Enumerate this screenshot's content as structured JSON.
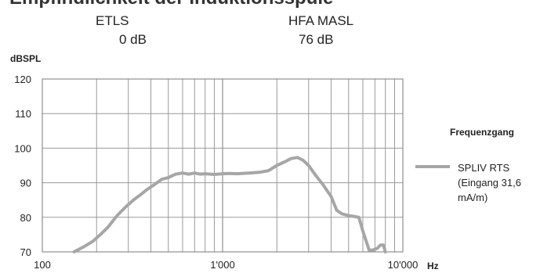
{
  "header": {
    "title": "Empfindlichkeit der Induktionsspule",
    "left_label": "ETLS",
    "left_value": "0 dB",
    "right_label": "HFA MASL",
    "right_value": "76 dB"
  },
  "chart_data": {
    "type": "line",
    "title": "",
    "ylabel": "dBSPL",
    "xlabel": "Hz",
    "xscale": "log",
    "xlim": [
      100,
      10000
    ],
    "ylim": [
      70,
      120
    ],
    "xticks": [
      100,
      1000,
      10000
    ],
    "xtick_labels": [
      "100",
      "1'000",
      "10'000"
    ],
    "yticks": [
      70,
      80,
      90,
      100,
      110,
      120
    ],
    "grid": true,
    "legend": {
      "title": "Frequenzgang",
      "position": "right"
    },
    "series": [
      {
        "name": "SPLIV RTS (Eingang 31,6 mA/m)",
        "color": "#a6a6a6",
        "x": [
          150,
          170,
          190,
          210,
          230,
          260,
          290,
          320,
          350,
          380,
          420,
          460,
          500,
          550,
          600,
          650,
          700,
          750,
          800,
          900,
          1000,
          1100,
          1200,
          1400,
          1600,
          1800,
          2000,
          2200,
          2400,
          2600,
          2800,
          3000,
          3300,
          3600,
          4000,
          4300,
          4600,
          5000,
          5300,
          5700,
          6000,
          6500,
          6800,
          7000,
          7200,
          7500,
          7800,
          8000
        ],
        "y": [
          70,
          71.5,
          73,
          75,
          77,
          80.5,
          83,
          85,
          86.5,
          88,
          89.5,
          91,
          91.5,
          92.5,
          92.8,
          92.5,
          92.8,
          92.5,
          92.6,
          92.4,
          92.6,
          92.7,
          92.6,
          92.8,
          93,
          93.5,
          95,
          96,
          97,
          97.3,
          96.5,
          95,
          92,
          89.5,
          86,
          82,
          81,
          80.5,
          80.3,
          80,
          76,
          70.5,
          70.5,
          70.8,
          71,
          72,
          72,
          70
        ]
      }
    ]
  }
}
